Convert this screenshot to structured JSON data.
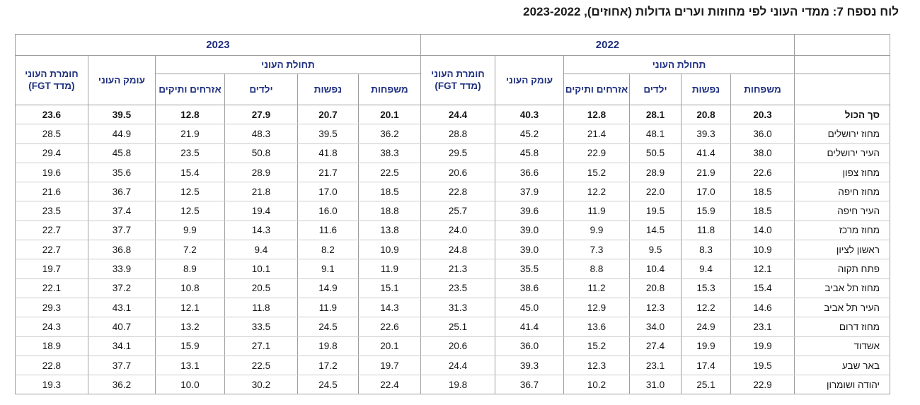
{
  "title": "לוח נספח 7: ממדי העוני לפי מחוזות וערים גדולות (אחוזים), 2023-2022",
  "colors": {
    "header_text": "#1f3080",
    "border": "#9e9e9e",
    "row_border": "#cbcbcb",
    "text": "#141414"
  },
  "table": {
    "years": {
      "y2023": "2023",
      "y2022": "2022"
    },
    "headers": {
      "severity_line1": "חומרת העוני",
      "severity_line2": "(מדד FGT)",
      "depth": "עומק העוני",
      "incidence": "תחולת העוני",
      "seniors": "אזרחים ותיקים",
      "children": "ילדים",
      "persons": "נפשות",
      "families": "משפחות"
    },
    "value_order": [
      "fgt",
      "depth",
      "seniors",
      "children",
      "persons",
      "families"
    ],
    "rows": [
      {
        "label": "סך הכול",
        "bold": true,
        "y2023": [
          "23.6",
          "39.5",
          "12.8",
          "27.9",
          "20.7",
          "20.1"
        ],
        "y2022": [
          "24.4",
          "40.3",
          "12.8",
          "28.1",
          "20.8",
          "20.3"
        ]
      },
      {
        "label": "מחוז ירושלים",
        "bold": false,
        "y2023": [
          "28.5",
          "44.9",
          "21.9",
          "48.3",
          "39.5",
          "36.2"
        ],
        "y2022": [
          "28.8",
          "45.2",
          "21.4",
          "48.1",
          "39.3",
          "36.0"
        ]
      },
      {
        "label": "העיר ירושלים",
        "bold": false,
        "y2023": [
          "29.4",
          "45.8",
          "23.5",
          "50.8",
          "41.8",
          "38.3"
        ],
        "y2022": [
          "29.5",
          "45.8",
          "22.9",
          "50.5",
          "41.4",
          "38.0"
        ]
      },
      {
        "label": "מחוז צפון",
        "bold": false,
        "y2023": [
          "19.6",
          "35.6",
          "15.4",
          "28.9",
          "21.7",
          "22.5"
        ],
        "y2022": [
          "20.6",
          "36.6",
          "15.2",
          "28.9",
          "21.9",
          "22.6"
        ]
      },
      {
        "label": "מחוז חיפה",
        "bold": false,
        "y2023": [
          "21.6",
          "36.7",
          "12.5",
          "21.8",
          "17.0",
          "18.5"
        ],
        "y2022": [
          "22.8",
          "37.9",
          "12.2",
          "22.0",
          "17.0",
          "18.5"
        ]
      },
      {
        "label": "העיר חיפה",
        "bold": false,
        "y2023": [
          "23.5",
          "37.4",
          "12.5",
          "19.4",
          "16.0",
          "18.8"
        ],
        "y2022": [
          "25.7",
          "39.6",
          "11.9",
          "19.5",
          "15.9",
          "18.5"
        ]
      },
      {
        "label": "מחוז מרכז",
        "bold": false,
        "y2023": [
          "22.7",
          "37.7",
          "9.9",
          "14.3",
          "11.6",
          "13.8"
        ],
        "y2022": [
          "24.0",
          "39.0",
          "9.9",
          "14.5",
          "11.8",
          "14.0"
        ]
      },
      {
        "label": "ראשון לציון",
        "bold": false,
        "y2023": [
          "22.7",
          "36.8",
          "7.2",
          "9.4",
          "8.2",
          "10.9"
        ],
        "y2022": [
          "24.8",
          "39.0",
          "7.3",
          "9.5",
          "8.3",
          "10.9"
        ]
      },
      {
        "label": "פתח תקוה",
        "bold": false,
        "y2023": [
          "19.7",
          "33.9",
          "8.9",
          "10.1",
          "9.1",
          "11.9"
        ],
        "y2022": [
          "21.3",
          "35.5",
          "8.8",
          "10.4",
          "9.4",
          "12.1"
        ]
      },
      {
        "label": "מחוז תל אביב",
        "bold": false,
        "y2023": [
          "22.1",
          "37.2",
          "10.8",
          "20.5",
          "14.9",
          "15.1"
        ],
        "y2022": [
          "23.5",
          "38.6",
          "11.2",
          "20.8",
          "15.3",
          "15.4"
        ]
      },
      {
        "label": "העיר תל אביב",
        "bold": false,
        "y2023": [
          "29.3",
          "43.1",
          "12.1",
          "11.8",
          "11.9",
          "14.3"
        ],
        "y2022": [
          "31.3",
          "45.0",
          "12.9",
          "12.3",
          "12.2",
          "14.6"
        ]
      },
      {
        "label": "מחוז דרום",
        "bold": false,
        "y2023": [
          "24.3",
          "40.7",
          "13.2",
          "33.5",
          "24.5",
          "22.6"
        ],
        "y2022": [
          "25.1",
          "41.4",
          "13.6",
          "34.0",
          "24.9",
          "23.1"
        ]
      },
      {
        "label": "אשדוד",
        "bold": false,
        "y2023": [
          "18.9",
          "34.1",
          "15.9",
          "27.1",
          "19.8",
          "20.1"
        ],
        "y2022": [
          "20.6",
          "36.0",
          "15.2",
          "27.4",
          "19.9",
          "19.9"
        ]
      },
      {
        "label": "באר שבע",
        "bold": false,
        "y2023": [
          "22.8",
          "37.7",
          "13.1",
          "22.5",
          "17.2",
          "19.7"
        ],
        "y2022": [
          "24.4",
          "39.3",
          "12.3",
          "23.1",
          "17.4",
          "19.5"
        ]
      },
      {
        "label": "יהודה ושומרון",
        "bold": false,
        "y2023": [
          "19.3",
          "36.2",
          "10.0",
          "30.2",
          "24.5",
          "22.4"
        ],
        "y2022": [
          "19.8",
          "36.7",
          "10.2",
          "31.0",
          "25.1",
          "22.9"
        ]
      }
    ]
  }
}
